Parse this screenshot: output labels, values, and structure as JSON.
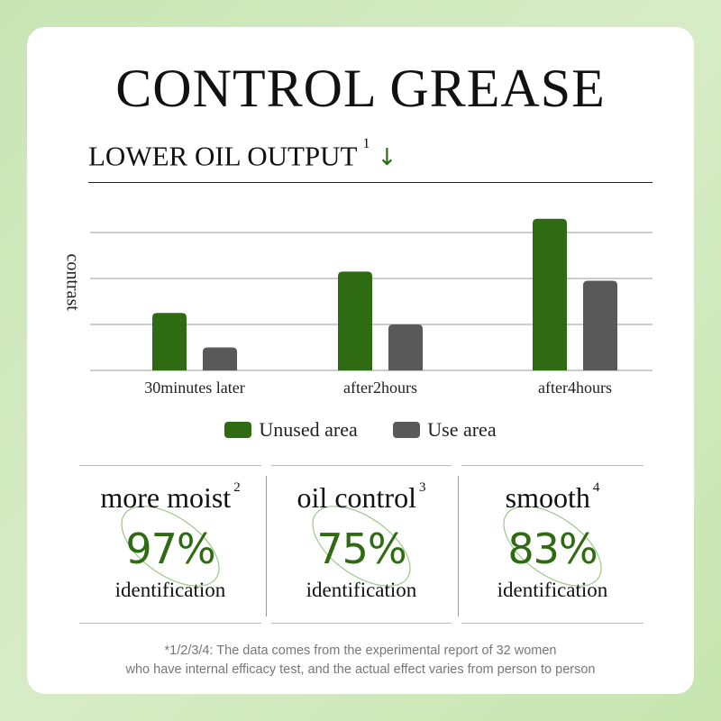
{
  "title": "CONTROL GREASE",
  "subtitle": {
    "text": "LOWER OIL OUTPUT",
    "superscript": "1",
    "arrow": "↓"
  },
  "colors": {
    "accent": "#2e6b12",
    "unused_bar": "#2e6b12",
    "use_bar": "#595959",
    "background": "#cce7b8"
  },
  "chart_data": {
    "type": "bar",
    "title": "LOWER OIL OUTPUT",
    "ylabel": "contrast",
    "xlabel": "",
    "categories": [
      "30minutes later",
      "after2hours",
      "after4hours"
    ],
    "series": [
      {
        "name": "Unused area",
        "values": [
          1.25,
          2.15,
          3.3
        ]
      },
      {
        "name": "Use area",
        "values": [
          0.5,
          1.0,
          1.95
        ]
      }
    ],
    "ylim": [
      0,
      4
    ],
    "grid": true,
    "legend": "bottom"
  },
  "legend": {
    "unused_label": "Unused area",
    "use_label": "Use area"
  },
  "stats": [
    {
      "label": "more moist",
      "superscript": "2",
      "value": "97%",
      "sub": "identification"
    },
    {
      "label": "oil control",
      "superscript": "3",
      "value": "75%",
      "sub": "identification"
    },
    {
      "label": "smooth",
      "superscript": "4",
      "value": "83%",
      "sub": "identification"
    }
  ],
  "footnote": {
    "line1": "*1/2/3/4:  The data comes from the experimental report of 32 women",
    "line2": "who have internal efficacy test, and the actual effect varies from person to person"
  }
}
